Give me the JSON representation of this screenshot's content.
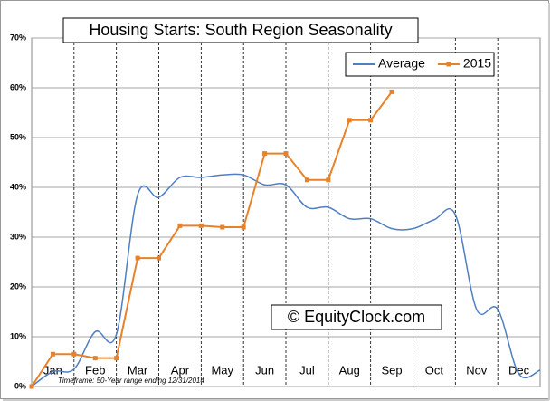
{
  "chart_data": {
    "type": "line",
    "title": "Housing Starts: South Region Seasonality",
    "categories": [
      "Jan",
      "Feb",
      "Mar",
      "Apr",
      "May",
      "Jun",
      "Jul",
      "Aug",
      "Sep",
      "Oct",
      "Nov",
      "Dec"
    ],
    "x": [
      0,
      0.5,
      1,
      1.5,
      2,
      2.5,
      3,
      3.5,
      4,
      4.5,
      5,
      5.5,
      6,
      6.5,
      7,
      7.5,
      8,
      8.5,
      9,
      9.5,
      10,
      10.5,
      11,
      11.5,
      12
    ],
    "series": [
      {
        "name": "Average",
        "color": "#4f7fc0",
        "smooth": true,
        "values": [
          0,
          3,
          3.5,
          11,
          10.5,
          38.5,
          38,
          42,
          42,
          42.5,
          42.5,
          40.5,
          40.5,
          36,
          36,
          33.7,
          33.7,
          31.7,
          31.7,
          33.5,
          34.5,
          15.5,
          15.5,
          2.5,
          3.3
        ]
      },
      {
        "name": "2015",
        "color": "#e8822a",
        "markers": true,
        "values": [
          0,
          6.5,
          6.5,
          5.7,
          5.7,
          25.8,
          25.8,
          32.3,
          32.3,
          32,
          32,
          46.8,
          46.8,
          41.5,
          41.5,
          53.5,
          53.5,
          59.2,
          null,
          null,
          null,
          null,
          null,
          null,
          null
        ]
      }
    ],
    "xlim": [
      0,
      12
    ],
    "xticks": [
      1,
      2,
      3,
      4,
      5,
      6,
      7,
      8,
      9,
      10,
      11
    ],
    "ylim": [
      0,
      70
    ],
    "yticks": [
      {
        "value": 0,
        "label": "0%"
      },
      {
        "value": 10,
        "label": "10%"
      },
      {
        "value": 20,
        "label": "20%"
      },
      {
        "value": 30,
        "label": "30%"
      },
      {
        "value": 40,
        "label": "40%"
      },
      {
        "value": 50,
        "label": "50%"
      },
      {
        "value": 60,
        "label": "60%"
      },
      {
        "value": 70,
        "label": "70%"
      }
    ],
    "grid": true,
    "legend": "upper right",
    "watermark": "© EquityClock.com",
    "footnote": "Timeframe: 50-Year range ending 12/31/2014"
  }
}
